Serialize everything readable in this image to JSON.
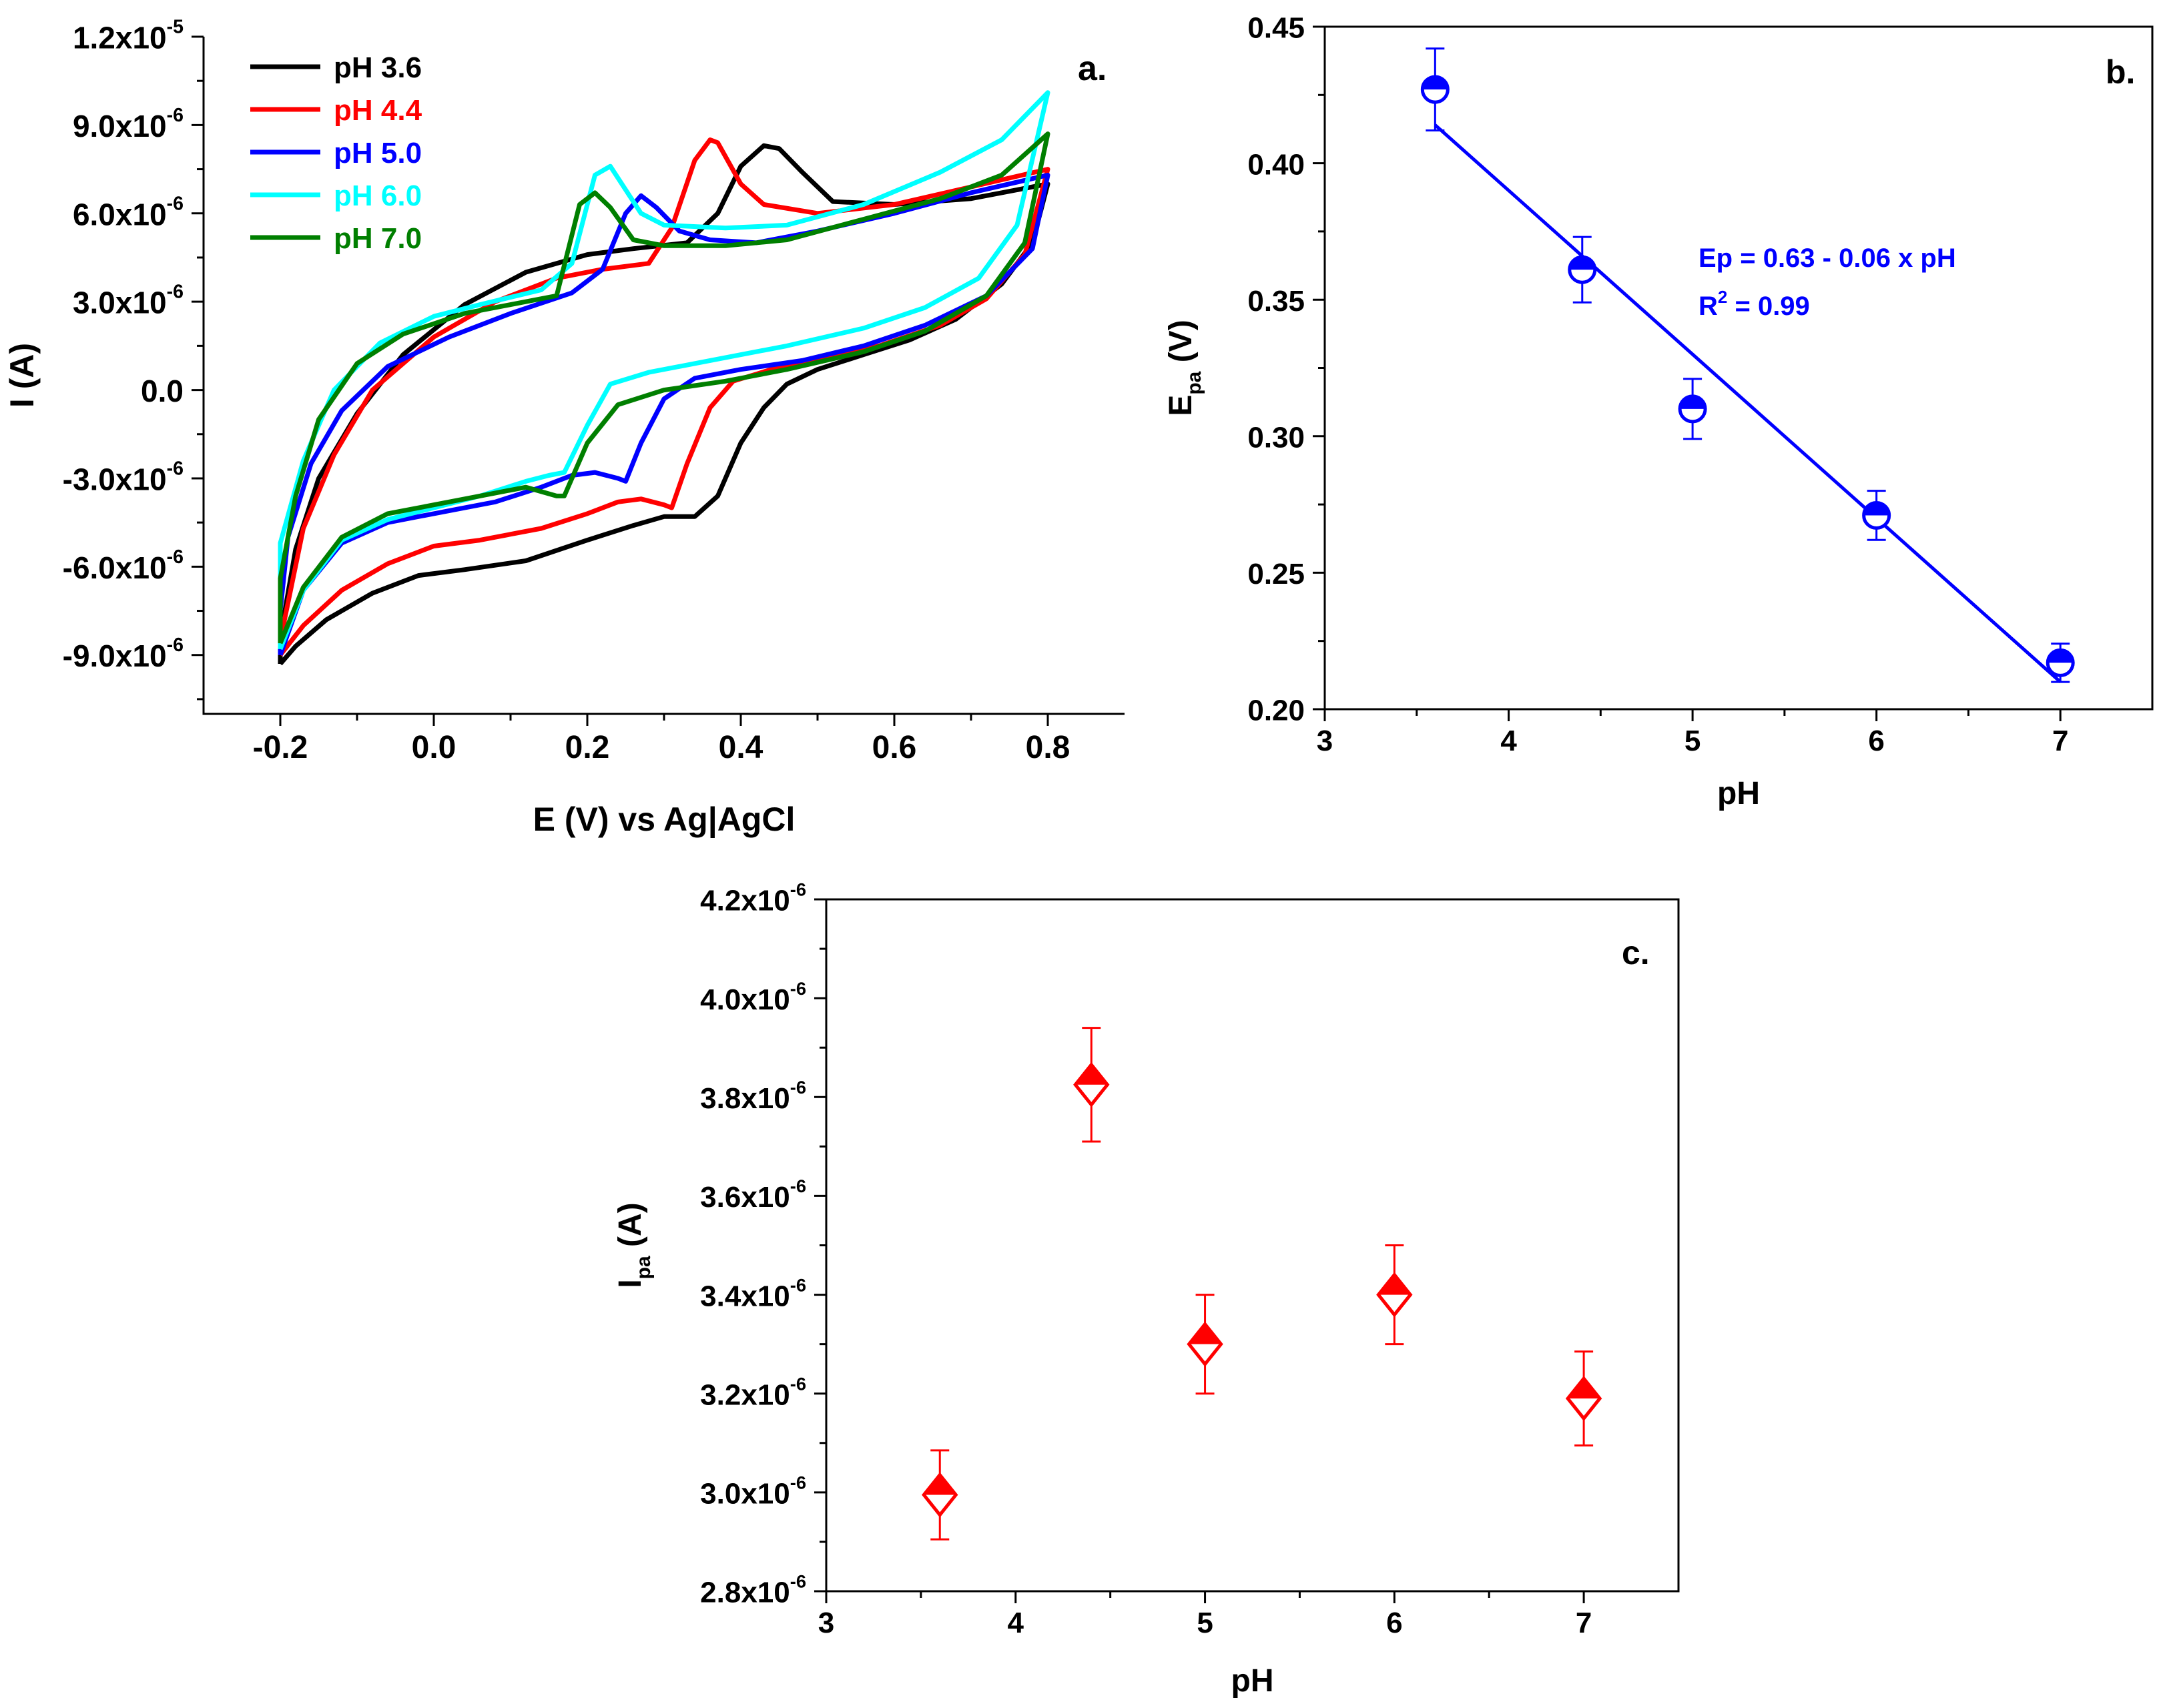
{
  "chart_data": [
    {
      "type": "line",
      "panel_label": "a.",
      "xlabel": "E (V) vs Ag|AgCl",
      "ylabel": "I (A)",
      "xlim": [
        -0.3,
        0.9
      ],
      "ylim": [
        -1.1e-05,
        1.2e-05
      ],
      "xticks": [
        -0.2,
        0.0,
        0.2,
        0.4,
        0.6,
        0.8
      ],
      "xtick_labels": [
        "-0.2",
        "0.0",
        "0.2",
        "0.4",
        "0.6",
        "0.8"
      ],
      "yticks": [
        1.2e-05,
        9e-06,
        6e-06,
        3e-06,
        0.0,
        -3e-06,
        -6e-06,
        -9e-06
      ],
      "ytick_labels": [
        {
          "mantissa": "1.2x10",
          "exp": "-5"
        },
        {
          "mantissa": "9.0x10",
          "exp": "-6"
        },
        {
          "mantissa": "6.0x10",
          "exp": "-6"
        },
        {
          "mantissa": "3.0x10",
          "exp": "-6"
        },
        {
          "mantissa": "0.0",
          "exp": ""
        },
        {
          "mantissa": "-3.0x10",
          "exp": "-6"
        },
        {
          "mantissa": "-6.0x10",
          "exp": "-6"
        },
        {
          "mantissa": "-9.0x10",
          "exp": "-6"
        }
      ],
      "legend_position": "top-left",
      "series": [
        {
          "name": "pH 3.6",
          "color": "#000000",
          "forward": [
            [
              -0.2,
              -9.3e-06
            ],
            [
              -0.18,
              -8.7e-06
            ],
            [
              -0.14,
              -7.8e-06
            ],
            [
              -0.08,
              -6.9e-06
            ],
            [
              -0.02,
              -6.3e-06
            ],
            [
              0.04,
              -6.1e-06
            ],
            [
              0.12,
              -5.8e-06
            ],
            [
              0.2,
              -5.1e-06
            ],
            [
              0.26,
              -4.6e-06
            ],
            [
              0.3,
              -4.3e-06
            ],
            [
              0.34,
              -4.3e-06
            ],
            [
              0.37,
              -3.6e-06
            ],
            [
              0.4,
              -1.8e-06
            ],
            [
              0.43,
              -6e-07
            ],
            [
              0.46,
              2e-07
            ],
            [
              0.5,
              7e-07
            ],
            [
              0.56,
              1.2e-06
            ],
            [
              0.62,
              1.7e-06
            ],
            [
              0.68,
              2.4e-06
            ],
            [
              0.74,
              3.6e-06
            ],
            [
              0.78,
              5e-06
            ],
            [
              0.8,
              7e-06
            ]
          ],
          "reverse": [
            [
              0.8,
              7e-06
            ],
            [
              0.7,
              6.5e-06
            ],
            [
              0.6,
              6.3e-06
            ],
            [
              0.52,
              6.4e-06
            ],
            [
              0.48,
              7.4e-06
            ],
            [
              0.45,
              8.2e-06
            ],
            [
              0.43,
              8.3e-06
            ],
            [
              0.4,
              7.6e-06
            ],
            [
              0.37,
              6e-06
            ],
            [
              0.33,
              5e-06
            ],
            [
              0.26,
              4.8e-06
            ],
            [
              0.2,
              4.6e-06
            ],
            [
              0.12,
              4e-06
            ],
            [
              0.04,
              2.9e-06
            ],
            [
              -0.04,
              1.2e-06
            ],
            [
              -0.1,
              -8e-07
            ],
            [
              -0.15,
              -3e-06
            ],
            [
              -0.18,
              -5.4e-06
            ],
            [
              -0.2,
              -8.4e-06
            ]
          ]
        },
        {
          "name": "pH 4.4",
          "color": "#ff0000",
          "forward": [
            [
              -0.2,
              -9e-06
            ],
            [
              -0.17,
              -8e-06
            ],
            [
              -0.12,
              -6.8e-06
            ],
            [
              -0.06,
              -5.9e-06
            ],
            [
              0.0,
              -5.3e-06
            ],
            [
              0.06,
              -5.1e-06
            ],
            [
              0.14,
              -4.7e-06
            ],
            [
              0.2,
              -4.2e-06
            ],
            [
              0.24,
              -3.8e-06
            ],
            [
              0.27,
              -3.7e-06
            ],
            [
              0.3,
              -3.9e-06
            ],
            [
              0.31,
              -4e-06
            ],
            [
              0.33,
              -2.5e-06
            ],
            [
              0.36,
              -6e-07
            ],
            [
              0.39,
              3e-07
            ],
            [
              0.44,
              7e-07
            ],
            [
              0.5,
              1e-06
            ],
            [
              0.58,
              1.5e-06
            ],
            [
              0.66,
              2.2e-06
            ],
            [
              0.72,
              3.1e-06
            ],
            [
              0.77,
              4.6e-06
            ],
            [
              0.8,
              7.5e-06
            ]
          ],
          "reverse": [
            [
              0.8,
              7.5e-06
            ],
            [
              0.7,
              6.9e-06
            ],
            [
              0.6,
              6.3e-06
            ],
            [
              0.5,
              6e-06
            ],
            [
              0.43,
              6.3e-06
            ],
            [
              0.4,
              7e-06
            ],
            [
              0.37,
              8.4e-06
            ],
            [
              0.36,
              8.5e-06
            ],
            [
              0.34,
              7.8e-06
            ],
            [
              0.31,
              5.5e-06
            ],
            [
              0.28,
              4.3e-06
            ],
            [
              0.22,
              4.1e-06
            ],
            [
              0.16,
              3.8e-06
            ],
            [
              0.08,
              3e-06
            ],
            [
              0.0,
              1.8e-06
            ],
            [
              -0.08,
              0.0
            ],
            [
              -0.13,
              -2.2e-06
            ],
            [
              -0.17,
              -4.7e-06
            ],
            [
              -0.2,
              -8.5e-06
            ]
          ]
        },
        {
          "name": "pH 5.0",
          "color": "#0000ff",
          "forward": [
            [
              -0.2,
              -9e-06
            ],
            [
              -0.17,
              -6.8e-06
            ],
            [
              -0.12,
              -5.2e-06
            ],
            [
              -0.06,
              -4.5e-06
            ],
            [
              0.0,
              -4.2e-06
            ],
            [
              0.08,
              -3.8e-06
            ],
            [
              0.14,
              -3.3e-06
            ],
            [
              0.18,
              -2.9e-06
            ],
            [
              0.21,
              -2.8e-06
            ],
            [
              0.24,
              -3e-06
            ],
            [
              0.25,
              -3.1e-06
            ],
            [
              0.27,
              -1.8e-06
            ],
            [
              0.3,
              -3e-07
            ],
            [
              0.34,
              4e-07
            ],
            [
              0.4,
              7e-07
            ],
            [
              0.48,
              1e-06
            ],
            [
              0.56,
              1.5e-06
            ],
            [
              0.64,
              2.2e-06
            ],
            [
              0.72,
              3.2e-06
            ],
            [
              0.78,
              4.8e-06
            ],
            [
              0.8,
              7.3e-06
            ]
          ],
          "reverse": [
            [
              0.8,
              7.3e-06
            ],
            [
              0.7,
              6.7e-06
            ],
            [
              0.6,
              6e-06
            ],
            [
              0.5,
              5.4e-06
            ],
            [
              0.42,
              5e-06
            ],
            [
              0.36,
              5.1e-06
            ],
            [
              0.32,
              5.4e-06
            ],
            [
              0.29,
              6.2e-06
            ],
            [
              0.27,
              6.6e-06
            ],
            [
              0.25,
              6e-06
            ],
            [
              0.22,
              4.1e-06
            ],
            [
              0.18,
              3.3e-06
            ],
            [
              0.1,
              2.6e-06
            ],
            [
              0.02,
              1.8e-06
            ],
            [
              -0.06,
              8e-07
            ],
            [
              -0.12,
              -7e-07
            ],
            [
              -0.16,
              -2.5e-06
            ],
            [
              -0.19,
              -5e-06
            ],
            [
              -0.2,
              -7.5e-06
            ]
          ]
        },
        {
          "name": "pH 6.0",
          "color": "#00ffff",
          "forward": [
            [
              -0.2,
              -8.8e-06
            ],
            [
              -0.17,
              -6.8e-06
            ],
            [
              -0.12,
              -5.1e-06
            ],
            [
              -0.06,
              -4.4e-06
            ],
            [
              0.0,
              -4e-06
            ],
            [
              0.06,
              -3.6e-06
            ],
            [
              0.12,
              -3.1e-06
            ],
            [
              0.15,
              -2.9e-06
            ],
            [
              0.17,
              -2.8e-06
            ],
            [
              0.2,
              -1.2e-06
            ],
            [
              0.23,
              2e-07
            ],
            [
              0.28,
              6e-07
            ],
            [
              0.36,
              1e-06
            ],
            [
              0.46,
              1.5e-06
            ],
            [
              0.56,
              2.1e-06
            ],
            [
              0.64,
              2.8e-06
            ],
            [
              0.71,
              3.8e-06
            ],
            [
              0.76,
              5.6e-06
            ],
            [
              0.8,
              1.01e-05
            ]
          ],
          "reverse": [
            [
              0.8,
              1.01e-05
            ],
            [
              0.74,
              8.5e-06
            ],
            [
              0.66,
              7.4e-06
            ],
            [
              0.56,
              6.3e-06
            ],
            [
              0.46,
              5.6e-06
            ],
            [
              0.38,
              5.5e-06
            ],
            [
              0.3,
              5.6e-06
            ],
            [
              0.27,
              6e-06
            ],
            [
              0.25,
              6.8e-06
            ],
            [
              0.23,
              7.6e-06
            ],
            [
              0.21,
              7.3e-06
            ],
            [
              0.18,
              4.3e-06
            ],
            [
              0.14,
              3.4e-06
            ],
            [
              0.06,
              2.9e-06
            ],
            [
              0.0,
              2.5e-06
            ],
            [
              -0.07,
              1.6e-06
            ],
            [
              -0.13,
              0.0
            ],
            [
              -0.17,
              -2.4e-06
            ],
            [
              -0.2,
              -5.2e-06
            ]
          ]
        },
        {
          "name": "pH 7.0",
          "color": "#007f00",
          "forward": [
            [
              -0.2,
              -8.6e-06
            ],
            [
              -0.17,
              -6.7e-06
            ],
            [
              -0.12,
              -5e-06
            ],
            [
              -0.06,
              -4.2e-06
            ],
            [
              0.0,
              -3.9e-06
            ],
            [
              0.06,
              -3.6e-06
            ],
            [
              0.12,
              -3.3e-06
            ],
            [
              0.16,
              -3.6e-06
            ],
            [
              0.17,
              -3.6e-06
            ],
            [
              0.2,
              -1.8e-06
            ],
            [
              0.24,
              -5e-07
            ],
            [
              0.3,
              0.0
            ],
            [
              0.38,
              3e-07
            ],
            [
              0.46,
              7e-07
            ],
            [
              0.56,
              1.3e-06
            ],
            [
              0.64,
              2e-06
            ],
            [
              0.72,
              3.2e-06
            ],
            [
              0.77,
              5e-06
            ],
            [
              0.8,
              8.7e-06
            ]
          ],
          "reverse": [
            [
              0.8,
              8.7e-06
            ],
            [
              0.74,
              7.3e-06
            ],
            [
              0.66,
              6.5e-06
            ],
            [
              0.56,
              5.8e-06
            ],
            [
              0.46,
              5.1e-06
            ],
            [
              0.38,
              4.9e-06
            ],
            [
              0.3,
              4.9e-06
            ],
            [
              0.26,
              5.1e-06
            ],
            [
              0.23,
              6.2e-06
            ],
            [
              0.21,
              6.7e-06
            ],
            [
              0.19,
              6.3e-06
            ],
            [
              0.16,
              3.2e-06
            ],
            [
              0.1,
              2.9e-06
            ],
            [
              0.04,
              2.6e-06
            ],
            [
              -0.04,
              1.9e-06
            ],
            [
              -0.1,
              9e-07
            ],
            [
              -0.15,
              -1e-06
            ],
            [
              -0.18,
              -3.6e-06
            ],
            [
              -0.2,
              -6.4e-06
            ]
          ]
        }
      ]
    },
    {
      "type": "scatter",
      "panel_label": "b.",
      "xlabel": "pH",
      "ylabel": {
        "main": "E",
        "sub": "pa",
        "suffix": " (V)"
      },
      "xlim": [
        3,
        7.5
      ],
      "ylim": [
        0.2,
        0.45
      ],
      "xticks": [
        3,
        4,
        5,
        6,
        7
      ],
      "xtick_labels": [
        "3",
        "4",
        "5",
        "6",
        "7"
      ],
      "yticks": [
        0.2,
        0.25,
        0.3,
        0.35,
        0.4,
        0.45
      ],
      "ytick_labels": [
        "0.20",
        "0.25",
        "0.30",
        "0.35",
        "0.40",
        "0.45"
      ],
      "color": "#0000ff",
      "x": [
        3.6,
        4.4,
        5.0,
        6.0,
        7.0
      ],
      "y": [
        0.427,
        0.361,
        0.31,
        0.271,
        0.217
      ],
      "error": [
        0.015,
        0.012,
        0.011,
        0.009,
        0.007
      ],
      "fit_line": {
        "x": [
          3.6,
          7.0
        ],
        "y": [
          0.414,
          0.21
        ]
      },
      "annotation": {
        "line1": "Ep = 0.63 - 0.06 x pH",
        "line2_pre": "R",
        "line2_sup": "2",
        "line2_post": " = 0.99"
      }
    },
    {
      "type": "scatter",
      "panel_label": "c.",
      "xlabel": "pH",
      "ylabel": {
        "main": "I",
        "sub": "pa",
        "suffix": " (A)"
      },
      "xlim": [
        3,
        7.5
      ],
      "ylim": [
        2.8e-06,
        4.2e-06
      ],
      "xticks": [
        3,
        4,
        5,
        6,
        7
      ],
      "xtick_labels": [
        "3",
        "4",
        "5",
        "6",
        "7"
      ],
      "yticks": [
        4.2e-06,
        4e-06,
        3.8e-06,
        3.6e-06,
        3.4e-06,
        3.2e-06,
        3e-06,
        2.8e-06
      ],
      "ytick_labels": [
        {
          "mantissa": "4.2x10",
          "exp": "-6"
        },
        {
          "mantissa": "4.0x10",
          "exp": "-6"
        },
        {
          "mantissa": "3.8x10",
          "exp": "-6"
        },
        {
          "mantissa": "3.6x10",
          "exp": "-6"
        },
        {
          "mantissa": "3.4x10",
          "exp": "-6"
        },
        {
          "mantissa": "3.2x10",
          "exp": "-6"
        },
        {
          "mantissa": "3.0x10",
          "exp": "-6"
        },
        {
          "mantissa": "2.8x10",
          "exp": "-6"
        }
      ],
      "color": "#ff0000",
      "x": [
        3.6,
        4.4,
        5.0,
        6.0,
        7.0
      ],
      "y": [
        2.995e-06,
        3.825e-06,
        3.3e-06,
        3.4e-06,
        3.19e-06
      ],
      "error": [
        9e-08,
        1.15e-07,
        1e-07,
        1e-07,
        9.5e-08
      ]
    }
  ]
}
